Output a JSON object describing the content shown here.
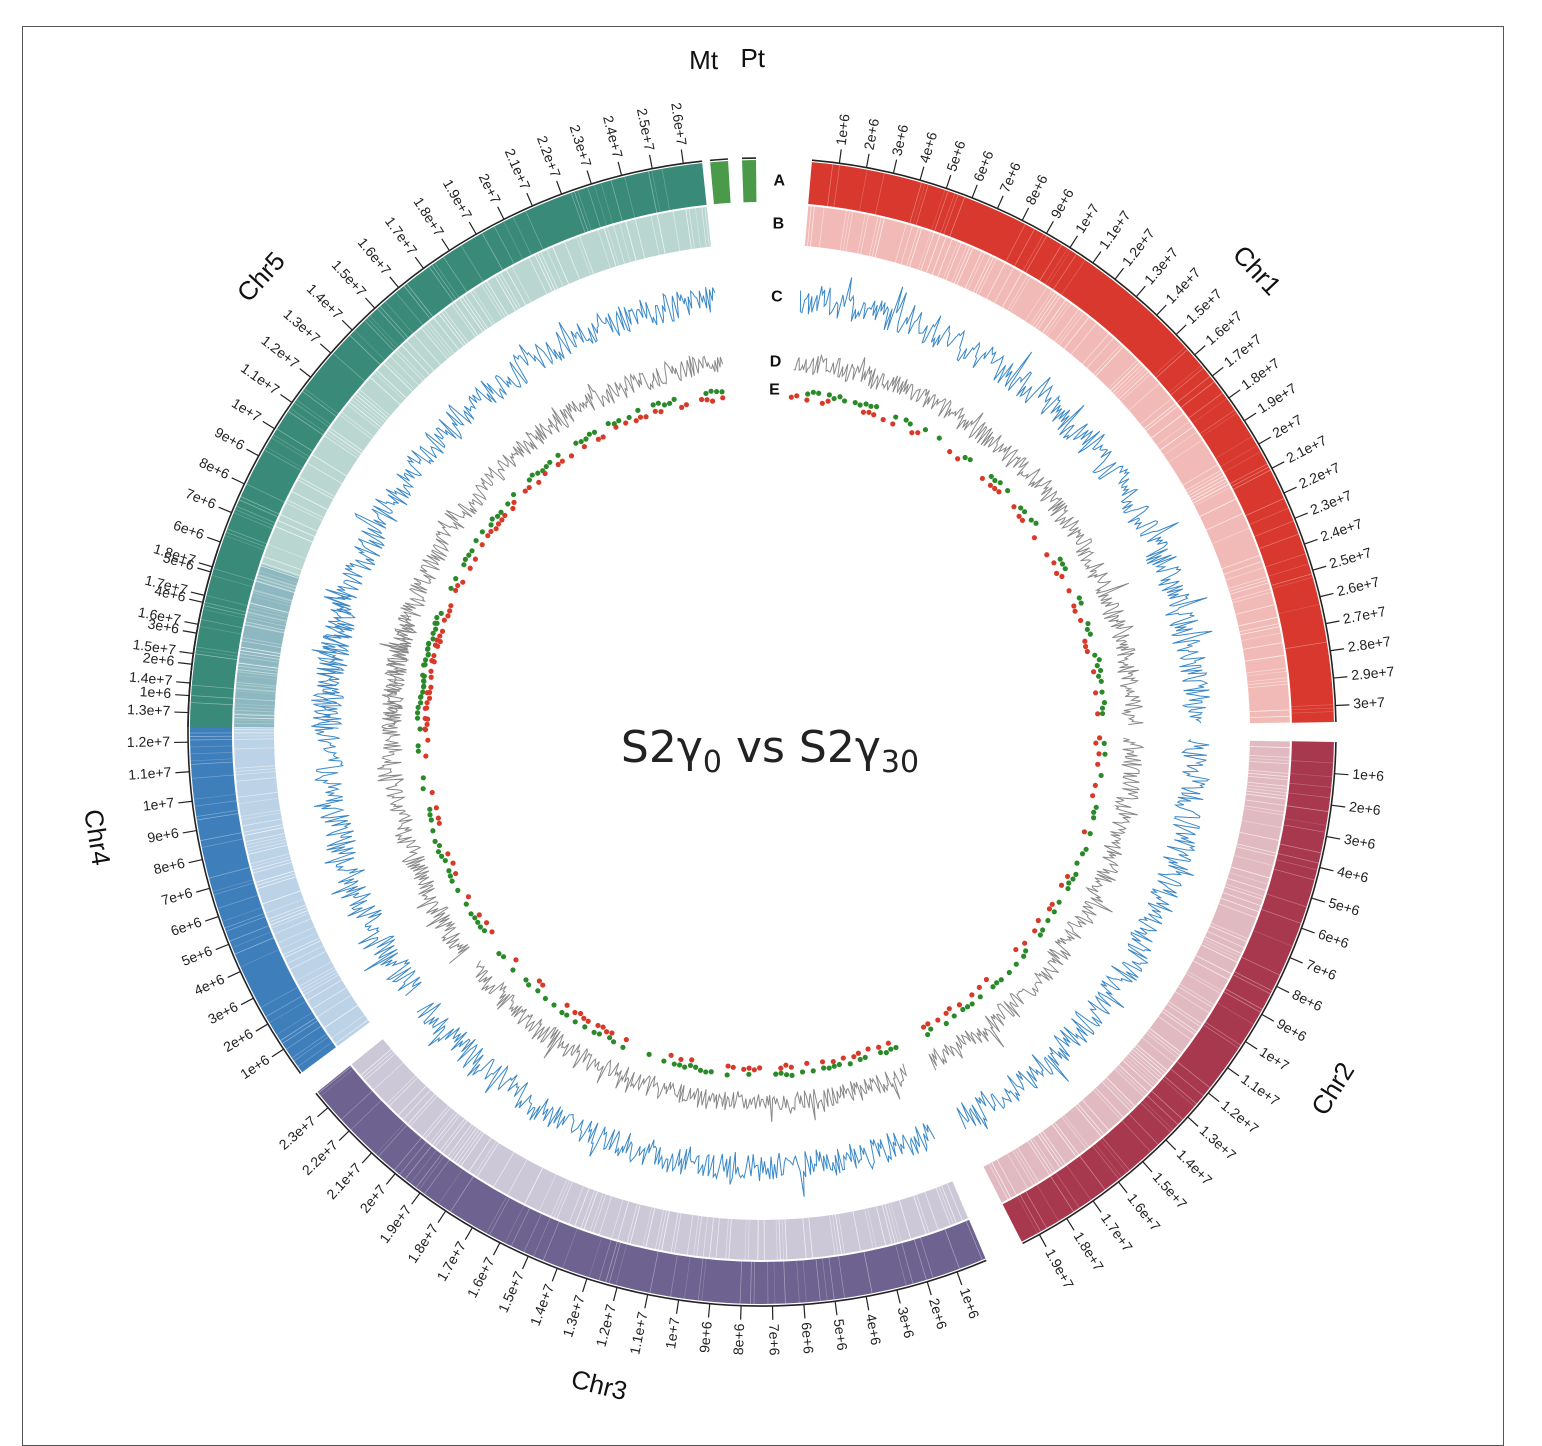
{
  "title": {
    "main": "S2γ",
    "sub1": "0",
    "mid": " vs S2γ",
    "sub2": "30"
  },
  "track_letters": [
    "A",
    "B",
    "C",
    "D",
    "E"
  ],
  "colors": {
    "Chr1": "#d8382e",
    "Chr2": "#a8384e",
    "Chr3": "#6e6290",
    "Chr4": "#3e7ebb",
    "Chr5": "#3a8a7a",
    "organelle": "#4a9a4a",
    "trackC": "#3a88c8",
    "trackD": "#888888",
    "snp_green": "#2a8a2a",
    "snp_red": "#d83a2a"
  },
  "chromosomes": [
    {
      "name": "Chr1",
      "ticks": [
        "1e+6",
        "2e+6",
        "3e+6",
        "4e+6",
        "5e+6",
        "6e+6",
        "7e+6",
        "8e+6",
        "9e+6",
        "1e+7",
        "1.1e+7",
        "1.2e+7",
        "1.3e+7",
        "1.4e+7",
        "1.5e+7",
        "1.6e+7",
        "1.7e+7",
        "1.8e+7",
        "1.9e+7",
        "2e+7",
        "2.1e+7",
        "2.2e+7",
        "2.3e+7",
        "2.4e+7",
        "2.5e+7",
        "2.6e+7",
        "2.7e+7",
        "2.8e+7",
        "2.9e+7",
        "3e+7"
      ]
    },
    {
      "name": "Chr2",
      "ticks": [
        "1e+6",
        "2e+6",
        "3e+6",
        "4e+6",
        "5e+6",
        "6e+6",
        "7e+6",
        "8e+6",
        "9e+6",
        "1e+7",
        "1.1e+7",
        "1.2e+7",
        "1.3e+7",
        "1.4e+7",
        "1.5e+7",
        "1.6e+7",
        "1.7e+7",
        "1.8e+7",
        "1.9e+7"
      ]
    },
    {
      "name": "Chr3",
      "ticks": [
        "1e+6",
        "2e+6",
        "3e+6",
        "4e+6",
        "5e+6",
        "6e+6",
        "7e+6",
        "8e+6",
        "9e+6",
        "1e+7",
        "1.1e+7",
        "1.2e+7",
        "1.3e+7",
        "1.4e+7",
        "1.5e+7",
        "1.6e+7",
        "1.7e+7",
        "1.8e+7",
        "1.9e+7",
        "2e+7",
        "2.1e+7",
        "2.2e+7",
        "2.3e+7"
      ]
    },
    {
      "name": "Chr4",
      "ticks": [
        "1e+6",
        "2e+6",
        "3e+6",
        "4e+6",
        "5e+6",
        "6e+6",
        "7e+6",
        "8e+6",
        "9e+6",
        "1e+7",
        "1.1e+7",
        "1.2e+7",
        "1.3e+7",
        "1.4e+7",
        "1.5e+7",
        "1.6e+7",
        "1.7e+7",
        "1.8e+7"
      ]
    },
    {
      "name": "Chr5",
      "ticks": [
        "1e+6",
        "2e+6",
        "3e+6",
        "4e+6",
        "5e+6",
        "6e+6",
        "7e+6",
        "8e+6",
        "9e+6",
        "1e+7",
        "1.1e+7",
        "1.2e+7",
        "1.3e+7",
        "1.4e+7",
        "1.5e+7",
        "1.6e+7",
        "1.7e+7",
        "1.8e+7",
        "1.9e+7",
        "2e+7",
        "2.1e+7",
        "2.2e+7",
        "2.3e+7",
        "2.4e+7",
        "2.5e+7",
        "2.6e+7"
      ]
    }
  ],
  "organelles": [
    "Mt",
    "Pt"
  ]
}
